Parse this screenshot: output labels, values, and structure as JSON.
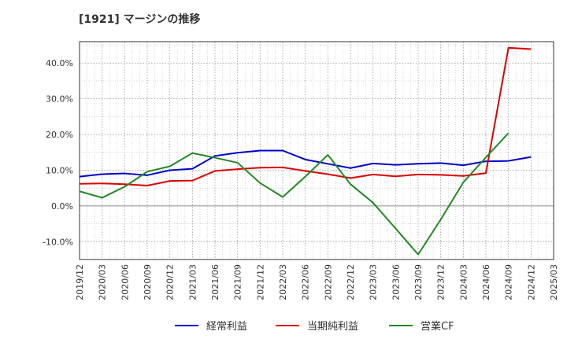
{
  "chart_data": {
    "type": "line",
    "title": "[1921]  マージンの推移",
    "x": [
      "2019/12",
      "2020/03",
      "2020/06",
      "2020/09",
      "2020/12",
      "2021/03",
      "2021/06",
      "2021/09",
      "2021/12",
      "2022/03",
      "2022/06",
      "2022/09",
      "2022/12",
      "2023/03",
      "2023/06",
      "2023/09",
      "2023/12",
      "2024/03",
      "2024/06",
      "2024/09",
      "2024/12",
      "2025/03"
    ],
    "ylim": [
      -15,
      46
    ],
    "yticks": [
      -10,
      0,
      10,
      20,
      30,
      40
    ],
    "ytick_labels": [
      "-10.0%",
      "0.0%",
      "10.0%",
      "20.0%",
      "30.0%",
      "40.0%"
    ],
    "grid": true,
    "legend_position": "bottom",
    "series": [
      {
        "name": "経常利益",
        "color": "#0000cc",
        "values": [
          8.2,
          8.9,
          9.1,
          8.6,
          10.0,
          10.4,
          14.0,
          14.9,
          15.5,
          15.5,
          13.0,
          11.8,
          10.6,
          11.9,
          11.5,
          11.8,
          12.0,
          11.4,
          12.5,
          12.6,
          13.7,
          null
        ]
      },
      {
        "name": "当期純利益",
        "color": "#dd0000",
        "values": [
          6.2,
          6.3,
          6.1,
          5.7,
          7.0,
          7.1,
          9.8,
          10.3,
          10.7,
          10.8,
          9.8,
          8.9,
          7.8,
          8.8,
          8.3,
          8.8,
          8.7,
          8.4,
          9.2,
          44.3,
          43.9,
          null
        ]
      },
      {
        "name": "営業CF",
        "color": "#228822",
        "values": [
          4.1,
          2.3,
          5.4,
          9.6,
          11.1,
          14.8,
          13.5,
          12.1,
          6.4,
          2.5,
          8.2,
          14.3,
          6.1,
          0.9,
          -6.3,
          -13.6,
          -3.8,
          6.6,
          13.6,
          20.4,
          null,
          null
        ]
      }
    ]
  }
}
